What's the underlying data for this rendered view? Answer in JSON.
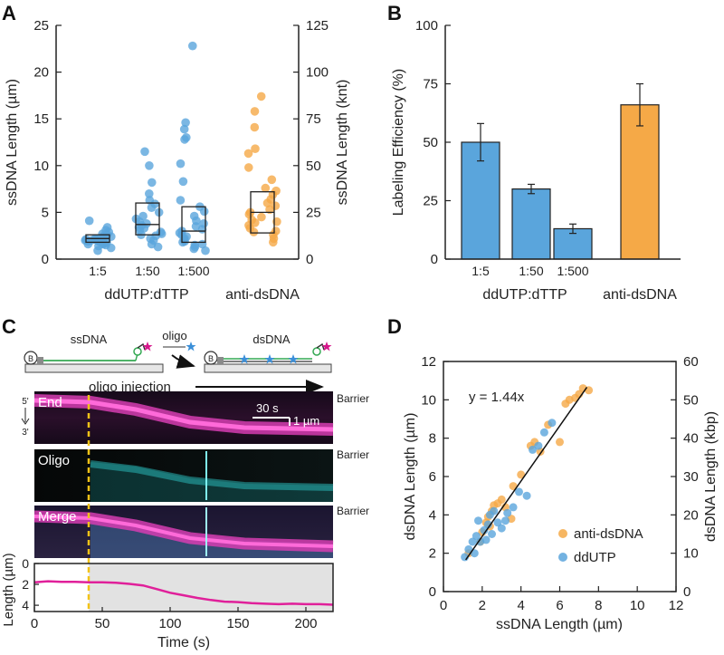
{
  "panels": {
    "A": "A",
    "B": "B",
    "C": "C",
    "D": "D"
  },
  "colors": {
    "blue": "#5aa5dc",
    "orange": "#f5a947",
    "magenta": "#e0209a",
    "cyan": "#30e0e0",
    "yellow_dash": "#f2c318",
    "grey_fill": "#e2e2e2"
  },
  "chart_data": [
    {
      "id": "A",
      "type": "scatter",
      "ylabel": "ssDNA Length (µm)",
      "y2label": "ssDNA Length (knt)",
      "ylim": [
        0,
        25
      ],
      "y2lim": [
        0,
        125
      ],
      "yticks": [
        "0",
        "5",
        "10",
        "15",
        "20",
        "25"
      ],
      "y2ticks": [
        "0",
        "25",
        "50",
        "75",
        "100",
        "125"
      ],
      "categories": [
        "1:5",
        "1:50",
        "1:500",
        "anti-dsDNA"
      ],
      "tick_labels": [
        "1:5",
        "1:50",
        "1:500"
      ],
      "group_label": "ddUTP:dTTP",
      "extra_label": "anti-dsDNA",
      "boxes": [
        {
          "q1": 1.8,
          "median": 2.2,
          "q3": 2.6
        },
        {
          "q1": 2.6,
          "median": 3.7,
          "q3": 6.0
        },
        {
          "q1": 1.8,
          "median": 3.0,
          "q3": 5.6
        },
        {
          "q1": 2.8,
          "median": 5.0,
          "q3": 7.2
        }
      ],
      "series": [
        {
          "name": "1:5",
          "color": "blue",
          "values": [
            0.9,
            1.2,
            1.4,
            1.5,
            1.6,
            1.7,
            1.8,
            1.8,
            1.9,
            2.0,
            2.0,
            2.1,
            2.1,
            2.2,
            2.2,
            2.3,
            2.4,
            2.5,
            2.6,
            2.7,
            2.9,
            3.1,
            3.4,
            4.1,
            2.0,
            1.6
          ]
        },
        {
          "name": "1:50",
          "color": "blue",
          "values": [
            1.3,
            1.6,
            2.0,
            2.2,
            2.5,
            2.7,
            2.9,
            3.1,
            3.3,
            3.6,
            3.8,
            4.0,
            4.3,
            4.6,
            5.0,
            5.5,
            5.9,
            6.3,
            7.0,
            8.2,
            10.0,
            11.5,
            2.6,
            3.4
          ]
        },
        {
          "name": "1:500",
          "color": "blue",
          "values": [
            0.9,
            1.1,
            1.3,
            1.5,
            1.6,
            1.8,
            1.9,
            2.1,
            2.2,
            2.4,
            2.6,
            2.8,
            3.0,
            3.2,
            3.5,
            3.8,
            4.1,
            4.6,
            5.1,
            5.6,
            6.3,
            8.3,
            10.2,
            12.8,
            13.0,
            13.9,
            14.6,
            22.8
          ]
        },
        {
          "name": "anti-dsDNA",
          "color": "orange",
          "values": [
            1.8,
            2.2,
            2.6,
            3.0,
            3.3,
            3.6,
            3.9,
            4.2,
            4.5,
            4.8,
            5.0,
            5.3,
            5.7,
            6.0,
            6.4,
            6.9,
            7.3,
            7.6,
            8.5,
            9.8,
            11.3,
            11.8,
            14.1,
            15.8,
            17.4,
            2.9,
            4.0
          ]
        }
      ]
    },
    {
      "id": "B",
      "type": "bar",
      "ylabel": "Labeling Efficiency (%)",
      "ylim": [
        0,
        100
      ],
      "yticks": [
        "0",
        "25",
        "50",
        "75",
        "100"
      ],
      "categories": [
        "1:5",
        "1:50",
        "1:500",
        "anti-dsDNA"
      ],
      "tick_labels": [
        "1:5",
        "1:50",
        "1:500"
      ],
      "group_label": "ddUTP:dTTP",
      "extra_label": "anti-dsDNA",
      "values": [
        50,
        30,
        13,
        66
      ],
      "errors": [
        8,
        2,
        2,
        9
      ],
      "bar_colors": [
        "blue",
        "blue",
        "blue",
        "orange"
      ]
    },
    {
      "id": "C",
      "type": "line",
      "schematic": {
        "left_label": "ssDNA",
        "right_label": "dsDNA",
        "arrow_label": "oligo",
        "bead_label": "B",
        "injection_label": "oligo injection"
      },
      "kymographs": {
        "row_labels": [
          "End",
          "Oligo",
          "Merge"
        ],
        "barrier_label": "Barrier",
        "axis_top": "5'",
        "axis_bottom": "3'",
        "scale_time": "30 s",
        "scale_length": "1 µm"
      },
      "xlabel": "Time (s)",
      "ylabel": "Length (µm)",
      "xlim": [
        0,
        220
      ],
      "ylim": [
        0,
        4.6
      ],
      "xticks": [
        "0",
        "50",
        "100",
        "150",
        "200"
      ],
      "yticks": [
        "0",
        "2",
        "4"
      ],
      "injection_time": 40,
      "x": [
        0,
        10,
        20,
        30,
        40,
        50,
        60,
        70,
        80,
        90,
        100,
        110,
        120,
        130,
        140,
        150,
        160,
        170,
        180,
        190,
        200,
        210,
        220
      ],
      "y": [
        1.8,
        1.7,
        1.75,
        1.75,
        1.8,
        1.8,
        1.85,
        1.95,
        2.1,
        2.45,
        2.8,
        3.05,
        3.3,
        3.5,
        3.65,
        3.7,
        3.8,
        3.85,
        3.9,
        3.85,
        3.9,
        3.9,
        3.95
      ]
    },
    {
      "id": "D",
      "type": "scatter",
      "xlabel": "ssDNA Length (µm)",
      "ylabel": "dsDNA Length (µm)",
      "y2label": "dsDNA Length (kbp)",
      "xlim": [
        0,
        12
      ],
      "ylim": [
        0,
        12
      ],
      "y2lim": [
        0,
        60
      ],
      "xticks": [
        "0",
        "2",
        "4",
        "6",
        "8",
        "10",
        "12"
      ],
      "yticks": [
        "0",
        "2",
        "4",
        "6",
        "8",
        "10",
        "12"
      ],
      "y2ticks": [
        "0",
        "10",
        "20",
        "30",
        "40",
        "50",
        "60"
      ],
      "fit_label": "y = 1.44x",
      "fit_slope": 1.44,
      "fit_range": [
        1.15,
        7.4
      ],
      "legend": [
        "anti-dsDNA",
        "ddUTP"
      ],
      "series": [
        {
          "name": "anti-dsDNA",
          "color": "orange",
          "points": [
            [
              1.3,
              2.0
            ],
            [
              1.9,
              2.6
            ],
            [
              2.0,
              3.1
            ],
            [
              2.2,
              3.6
            ],
            [
              2.3,
              3.9
            ],
            [
              2.5,
              4.2
            ],
            [
              2.6,
              4.5
            ],
            [
              2.8,
              4.6
            ],
            [
              3.0,
              4.8
            ],
            [
              3.2,
              4.4
            ],
            [
              3.6,
              5.5
            ],
            [
              4.0,
              6.1
            ],
            [
              4.5,
              7.6
            ],
            [
              4.7,
              7.8
            ],
            [
              5.0,
              7.3
            ],
            [
              5.4,
              8.7
            ],
            [
              6.0,
              7.8
            ],
            [
              6.3,
              9.8
            ],
            [
              6.5,
              10.0
            ],
            [
              6.8,
              10.1
            ],
            [
              7.0,
              10.3
            ],
            [
              7.2,
              10.6
            ],
            [
              7.5,
              10.5
            ],
            [
              2.4,
              3.4
            ],
            [
              3.5,
              3.8
            ]
          ]
        },
        {
          "name": "ddUTP",
          "color": "blue",
          "points": [
            [
              1.1,
              1.8
            ],
            [
              1.3,
              2.2
            ],
            [
              1.5,
              2.6
            ],
            [
              1.6,
              2.0
            ],
            [
              1.7,
              2.9
            ],
            [
              1.8,
              3.7
            ],
            [
              1.9,
              2.6
            ],
            [
              2.1,
              3.2
            ],
            [
              2.2,
              2.7
            ],
            [
              2.3,
              3.5
            ],
            [
              2.5,
              3.0
            ],
            [
              2.6,
              4.2
            ],
            [
              2.8,
              3.6
            ],
            [
              3.0,
              3.3
            ],
            [
              3.3,
              4.1
            ],
            [
              3.6,
              4.4
            ],
            [
              3.9,
              5.2
            ],
            [
              4.3,
              5.0
            ],
            [
              4.6,
              7.4
            ],
            [
              4.9,
              7.6
            ],
            [
              5.2,
              8.3
            ],
            [
              5.6,
              8.8
            ],
            [
              2.4,
              4.0
            ],
            [
              3.2,
              3.7
            ]
          ]
        }
      ]
    }
  ]
}
